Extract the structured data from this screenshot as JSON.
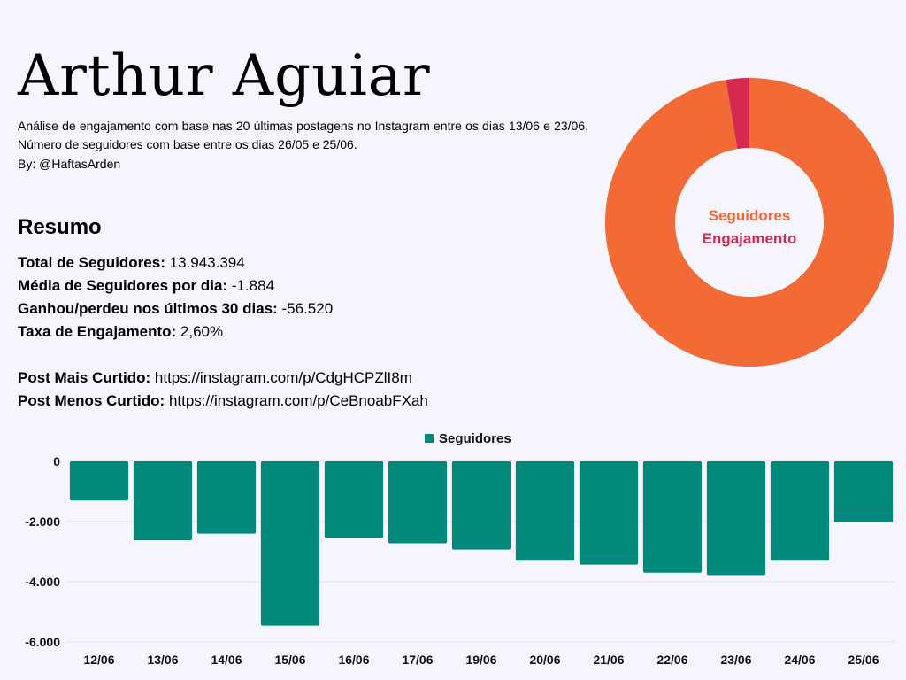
{
  "header": {
    "title": "Arthur Aguiar",
    "description": "Análise de engajamento com base nas 20 últimas postagens no Instagram entre os dias 13/06 e 23/06. Número de seguidores com base entre os dias 26/05 e 25/06.",
    "byline": "By: @HaftasArden"
  },
  "summary": {
    "heading": "Resumo",
    "rows": [
      {
        "label": "Total de Seguidores:",
        "value": "13.943.394"
      },
      {
        "label": "Média de Seguidores por dia:",
        "value": "-1.884"
      },
      {
        "label": "Ganhou/perdeu nos últimos 30 dias:",
        "value": "-56.520"
      },
      {
        "label": "Taxa de Engajamento:",
        "value": "2,60%"
      }
    ],
    "posts": [
      {
        "label": "Post Mais Curtido:",
        "value": "https://instagram.com/p/CdgHCPZlI8m"
      },
      {
        "label": "Post Menos Curtido:",
        "value": "https://instagram.com/p/CeBnoabFXah"
      }
    ]
  },
  "chart_data": [
    {
      "type": "pie",
      "donut": true,
      "labels": [
        "Seguidores",
        "Engajamento"
      ],
      "values": [
        97.4,
        2.6
      ],
      "colors": [
        "#f26a35",
        "#d62a50"
      ]
    },
    {
      "type": "bar",
      "categories": [
        "12/06",
        "13/06",
        "14/06",
        "15/06",
        "16/06",
        "17/06",
        "19/06",
        "20/06",
        "21/06",
        "22/06",
        "23/06",
        "24/06",
        "25/06"
      ],
      "series": [
        {
          "name": "Seguidores",
          "values": [
            -1300,
            -2620,
            -2400,
            -5460,
            -2560,
            -2720,
            -2930,
            -3300,
            -3430,
            -3700,
            -3780,
            -3300,
            -2030
          ],
          "color": "#00897b"
        }
      ],
      "ylim": [
        -6000,
        0
      ],
      "yticks": [
        0,
        -2000,
        -4000,
        -6000
      ],
      "ytick_labels": [
        "0",
        "-2.000",
        "-4.000",
        "-6.000"
      ],
      "grid": true,
      "legend": "top"
    }
  ]
}
